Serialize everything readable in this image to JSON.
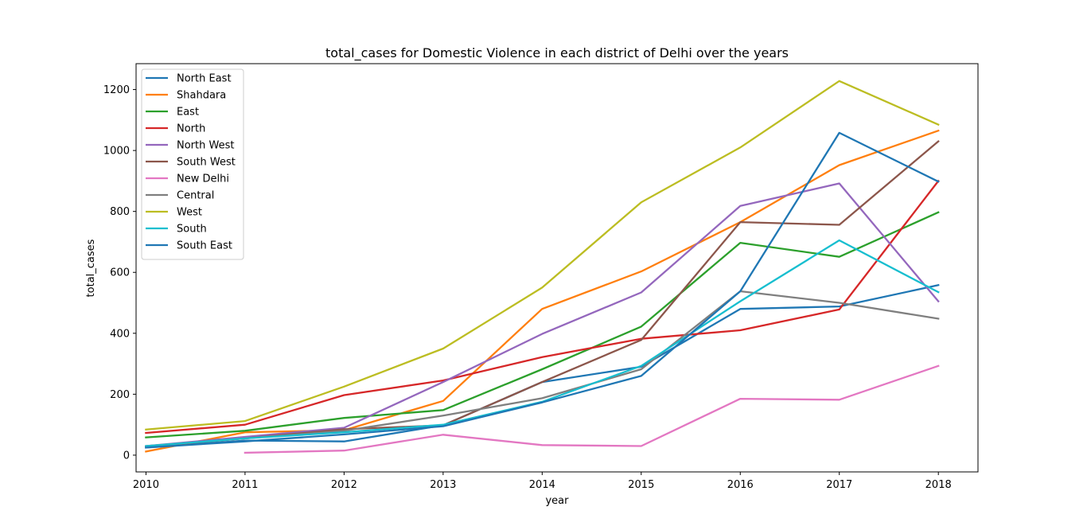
{
  "chart_data": {
    "type": "line",
    "title": "total_cases for Domestic Violence in each district of Delhi over the years",
    "xlabel": "year",
    "ylabel": "total_cases",
    "xlim": [
      2009.9,
      2018.4
    ],
    "ylim": [
      -55,
      1285
    ],
    "x_ticks": [
      "2010",
      "2011",
      "2012",
      "2013",
      "2014",
      "2015",
      "2016",
      "2017",
      "2018"
    ],
    "y_ticks": [
      "0",
      "200",
      "400",
      "600",
      "800",
      "1000",
      "1200"
    ],
    "legend_position": "upper-left",
    "grid": false,
    "series": [
      {
        "name": "North East",
        "color": "#1f77b4",
        "x": [
          2010,
          2011,
          2012,
          2013,
          2014,
          2015,
          2016,
          2017,
          2018
        ],
        "values": [
          25,
          48,
          45,
          98,
          240,
          290,
          480,
          488,
          558
        ]
      },
      {
        "name": "Shahdara",
        "color": "#ff7f0e",
        "x": [
          2010,
          2011,
          2012,
          2013,
          2014,
          2015,
          2016,
          2017,
          2018
        ],
        "values": [
          12,
          75,
          82,
          178,
          480,
          603,
          765,
          952,
          1065
        ]
      },
      {
        "name": "East",
        "color": "#2ca02c",
        "x": [
          2010,
          2011,
          2012,
          2013,
          2014,
          2015,
          2016,
          2017,
          2018
        ],
        "values": [
          58,
          80,
          122,
          148,
          282,
          422,
          697,
          651,
          797
        ]
      },
      {
        "name": "North",
        "color": "#d62728",
        "x": [
          2010,
          2011,
          2012,
          2013,
          2014,
          2015,
          2016,
          2017,
          2018
        ],
        "values": [
          73,
          100,
          197,
          245,
          322,
          382,
          410,
          478,
          900
        ]
      },
      {
        "name": "North West",
        "color": "#9467bd",
        "x": [
          2010,
          2011,
          2012,
          2013,
          2014,
          2015,
          2016,
          2017,
          2018
        ],
        "values": [
          30,
          60,
          90,
          240,
          398,
          534,
          818,
          892,
          505
        ]
      },
      {
        "name": "South West",
        "color": "#8c564b",
        "x": [
          2010,
          2011,
          2012,
          2013,
          2014,
          2015,
          2016,
          2017,
          2018
        ],
        "values": [
          28,
          55,
          85,
          98,
          240,
          378,
          765,
          756,
          1030
        ]
      },
      {
        "name": "New Delhi",
        "color": "#e377c2",
        "x": [
          2011,
          2012,
          2013,
          2014,
          2015,
          2016,
          2017,
          2018
        ],
        "values": [
          8,
          15,
          67,
          33,
          30,
          185,
          182,
          293
        ]
      },
      {
        "name": "Central",
        "color": "#7f7f7f",
        "x": [
          2010,
          2011,
          2012,
          2013,
          2014,
          2015,
          2016,
          2017,
          2018
        ],
        "values": [
          30,
          55,
          80,
          130,
          187,
          282,
          538,
          500,
          448
        ]
      },
      {
        "name": "West",
        "color": "#bcbd22",
        "x": [
          2010,
          2011,
          2012,
          2013,
          2014,
          2015,
          2016,
          2017,
          2018
        ],
        "values": [
          84,
          112,
          225,
          350,
          550,
          830,
          1010,
          1228,
          1085
        ]
      },
      {
        "name": "South",
        "color": "#17becf",
        "x": [
          2010,
          2011,
          2012,
          2013,
          2014,
          2015,
          2016,
          2017,
          2018
        ],
        "values": [
          30,
          55,
          75,
          100,
          175,
          293,
          505,
          705,
          535
        ]
      },
      {
        "name": "South East",
        "color": "#1f77b4",
        "x": [
          2010,
          2011,
          2012,
          2013,
          2014,
          2015,
          2016,
          2017,
          2018
        ],
        "values": [
          25,
          45,
          68,
          95,
          173,
          260,
          538,
          1058,
          898
        ]
      }
    ]
  }
}
